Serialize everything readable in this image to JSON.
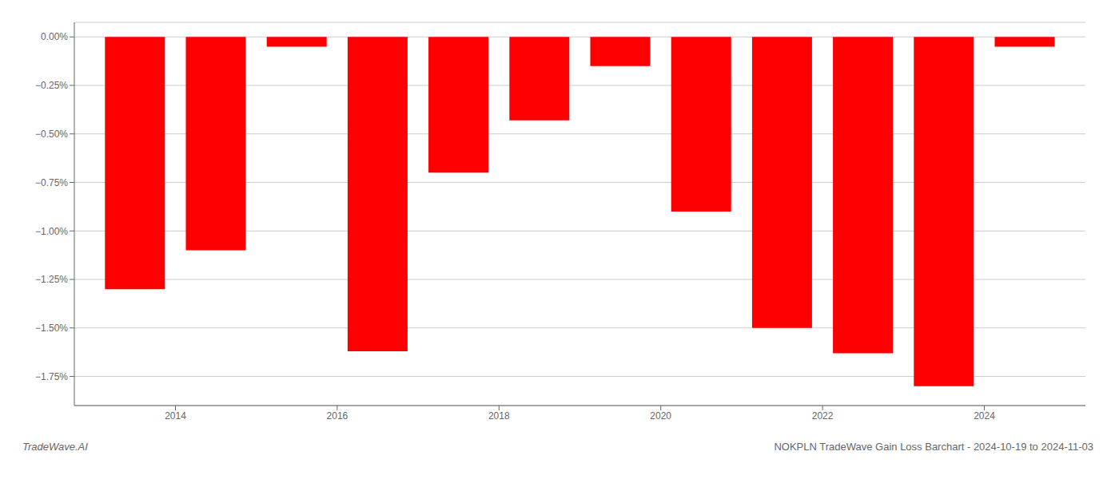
{
  "chart_data": {
    "type": "bar",
    "title": "NOKPLN TradeWave Gain Loss Barchart - 2024-10-19 to 2024-11-03",
    "annotations": [
      "TradeWave.AI"
    ],
    "x": [
      2013.5,
      2014.5,
      2015.5,
      2016.5,
      2017.5,
      2018.5,
      2019.5,
      2020.5,
      2021.5,
      2022.5,
      2023.5,
      2024.5
    ],
    "values": [
      -1.3,
      -1.1,
      -0.05,
      -1.62,
      -0.7,
      -0.43,
      -0.15,
      -0.9,
      -1.5,
      -1.63,
      -1.8,
      -0.05
    ],
    "color": "#ff0000",
    "xlim": [
      2012.75,
      2025.25
    ],
    "xticks": [
      2014,
      2016,
      2018,
      2020,
      2022,
      2024
    ],
    "ylim": [
      -1.9,
      0.075
    ],
    "yticks": [
      {
        "value": 0.0,
        "label": "0.00%"
      },
      {
        "value": -0.25,
        "label": "−0.25%"
      },
      {
        "value": -0.5,
        "label": "−0.50%"
      },
      {
        "value": -0.75,
        "label": "−0.75%"
      },
      {
        "value": -1.0,
        "label": "−1.00%"
      },
      {
        "value": -1.25,
        "label": "−1.25%"
      },
      {
        "value": -1.5,
        "label": "−1.50%"
      },
      {
        "value": -1.75,
        "label": "−1.75%"
      }
    ],
    "grid": true
  }
}
